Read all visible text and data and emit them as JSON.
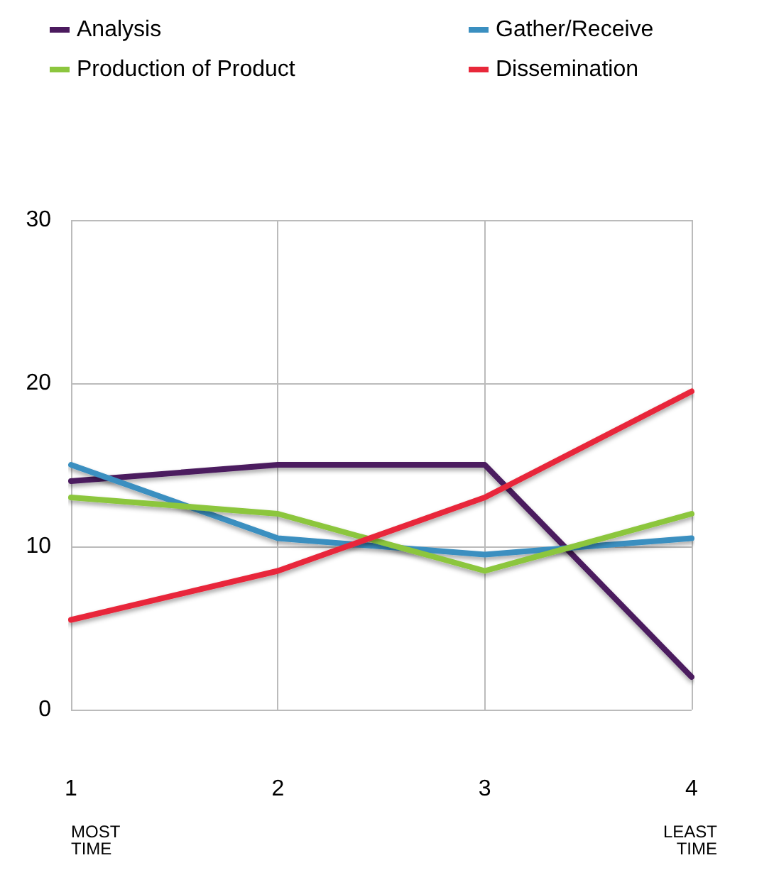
{
  "chart_data": {
    "type": "line",
    "categories": [
      "1",
      "2",
      "3",
      "4"
    ],
    "series": [
      {
        "name": "Analysis",
        "color": "#4b1a5e",
        "values": [
          14,
          15,
          15,
          2
        ]
      },
      {
        "name": "Gather/Receive",
        "color": "#3a8fc0",
        "values": [
          15,
          10.5,
          9.5,
          10.5
        ]
      },
      {
        "name": "Production of Product",
        "color": "#8cc63e",
        "values": [
          13,
          12,
          8.5,
          12
        ]
      },
      {
        "name": "Dissemination",
        "color": "#e8283a",
        "values": [
          5.5,
          8.5,
          13,
          19.5
        ]
      }
    ],
    "ylim": [
      0,
      30
    ],
    "yticks": [
      0,
      10,
      20,
      30
    ],
    "grid": true,
    "legend": "top",
    "marker": "none",
    "annotations": [
      "MOST\nTIME",
      "LEAST\nTIME"
    ]
  }
}
